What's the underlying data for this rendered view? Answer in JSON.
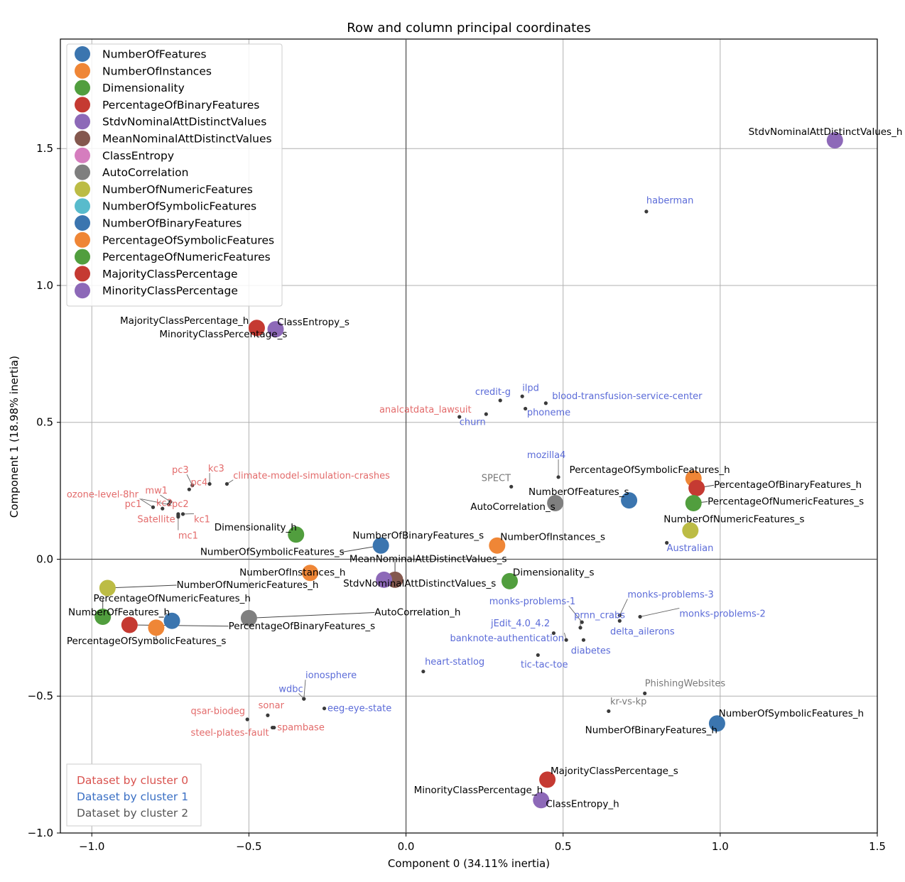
{
  "chart_data": {
    "type": "scatter",
    "title": "Row and column principal coordinates",
    "xlabel": "Component 0 (34.11% inertia)",
    "ylabel": "Component 1 (18.98% inertia)",
    "xlim": [
      -1.1,
      1.5
    ],
    "ylim": [
      -1.0,
      1.9
    ],
    "xticks": [
      -1.0,
      -0.5,
      0.0,
      0.5,
      1.0,
      1.5
    ],
    "xtick_labels": [
      "−1.0",
      "−0.5",
      "0.0",
      "0.5",
      "1.0",
      "1.5"
    ],
    "yticks": [
      -1.0,
      -0.5,
      0.0,
      0.5,
      1.0,
      1.5
    ],
    "ytick_labels": [
      "−1.0",
      "−0.5",
      "0.0",
      "0.5",
      "1.0",
      "1.5"
    ],
    "grid": true,
    "legend": {
      "position": "upper-left",
      "entries": [
        {
          "label": "NumberOfFeatures",
          "color": "#3b75af"
        },
        {
          "label": "NumberOfInstances",
          "color": "#ef8636"
        },
        {
          "label": "Dimensionality",
          "color": "#519e3e"
        },
        {
          "label": "PercentageOfBinaryFeatures",
          "color": "#c53a32"
        },
        {
          "label": "StdvNominalAttDistinctValues",
          "color": "#8d69b8"
        },
        {
          "label": "MeanNominalAttDistinctValues",
          "color": "#84584e"
        },
        {
          "label": "ClassEntropy",
          "color": "#d57dbe"
        },
        {
          "label": "AutoCorrelation",
          "color": "#7f7f7f"
        },
        {
          "label": "NumberOfNumericFeatures",
          "color": "#bcbc45"
        },
        {
          "label": "NumberOfSymbolicFeatures",
          "color": "#58bbcc"
        },
        {
          "label": "NumberOfBinaryFeatures",
          "color": "#3b75af"
        },
        {
          "label": "PercentageOfSymbolicFeatures",
          "color": "#ef8636"
        },
        {
          "label": "PercentageOfNumericFeatures",
          "color": "#519e3e"
        },
        {
          "label": "MajorityClassPercentage",
          "color": "#c53a32"
        },
        {
          "label": "MinorityClassPercentage",
          "color": "#8d69b8"
        }
      ]
    },
    "cluster_legend": {
      "position": "lower-left",
      "entries": [
        {
          "label": "Dataset by cluster 0",
          "color": "#d9534f"
        },
        {
          "label": "Dataset by cluster 1",
          "color": "#3a6fc4"
        },
        {
          "label": "Dataset by cluster 2",
          "color": "#555555"
        }
      ]
    },
    "feature_points": [
      {
        "label": "StdvNominalAttDistinctValues_h",
        "x": 1.365,
        "y": 1.53,
        "color": "#8d69b8"
      },
      {
        "label": "MajorityClassPercentage_h",
        "x": -0.475,
        "y": 0.845,
        "color": "#c53a32"
      },
      {
        "label": "ClassEntropy_s",
        "x": -0.415,
        "y": 0.84,
        "color": "#8d69b8"
      },
      {
        "label": "MinorityClassPercentage_s",
        "x": -0.415,
        "y": 0.84,
        "color": "#8d69b8",
        "hidden": true
      },
      {
        "label": "PercentageOfSymbolicFeatures_h",
        "x": 0.915,
        "y": 0.295,
        "color": "#ef8636"
      },
      {
        "label": "PercentageOfBinaryFeatures_h",
        "x": 0.925,
        "y": 0.26,
        "color": "#c53a32"
      },
      {
        "label": "PercentageOfNumericFeatures_s",
        "x": 0.915,
        "y": 0.205,
        "color": "#519e3e"
      },
      {
        "label": "NumberOfNumericFeatures_s",
        "x": 0.905,
        "y": 0.105,
        "color": "#bcbc45"
      },
      {
        "label": "NumberOfFeatures_s",
        "x": 0.71,
        "y": 0.215,
        "color": "#3b75af"
      },
      {
        "label": "AutoCorrelation_s",
        "x": 0.475,
        "y": 0.205,
        "color": "#7f7f7f"
      },
      {
        "label": "Dimensionality_h",
        "x": -0.35,
        "y": 0.09,
        "color": "#519e3e"
      },
      {
        "label": "NumberOfBinaryFeatures_s",
        "x": -0.08,
        "y": 0.05,
        "color": "#3b75af"
      },
      {
        "label": "NumberOfSymbolicFeatures_s",
        "x": -0.08,
        "y": 0.05,
        "color": "#58bbcc",
        "hidden": true
      },
      {
        "label": "NumberOfInstances_s",
        "x": 0.29,
        "y": 0.05,
        "color": "#ef8636"
      },
      {
        "label": "NumberOfInstances_h",
        "x": -0.305,
        "y": -0.05,
        "color": "#ef8636"
      },
      {
        "label": "MeanNominalAttDistinctValues_s",
        "x": -0.035,
        "y": -0.075,
        "color": "#84584e"
      },
      {
        "label": "StdvNominalAttDistinctValues_s",
        "x": -0.07,
        "y": -0.075,
        "color": "#8d69b8"
      },
      {
        "label": "Dimensionality_s",
        "x": 0.33,
        "y": -0.08,
        "color": "#519e3e"
      },
      {
        "label": "NumberOfNumericFeatures_h",
        "x": -0.95,
        "y": -0.105,
        "color": "#bcbc45"
      },
      {
        "label": "AutoCorrelation_h",
        "x": -0.5,
        "y": -0.215,
        "color": "#7f7f7f"
      },
      {
        "label": "PercentageOfNumericFeatures_h",
        "x": -0.965,
        "y": -0.21,
        "color": "#519e3e"
      },
      {
        "label": "NumberOfFeatures_h",
        "x": -0.745,
        "y": -0.225,
        "color": "#3b75af"
      },
      {
        "label": "PercentageOfBinaryFeatures_s",
        "x": -0.88,
        "y": -0.24,
        "color": "#c53a32"
      },
      {
        "label": "PercentageOfSymbolicFeatures_s",
        "x": -0.795,
        "y": -0.25,
        "color": "#ef8636"
      },
      {
        "label": "NumberOfSymbolicFeatures_h",
        "x": 0.99,
        "y": -0.6,
        "color": "#3b75af"
      },
      {
        "label": "NumberOfBinaryFeatures_h",
        "x": 0.99,
        "y": -0.6,
        "color": "#3b75af",
        "hidden": true
      },
      {
        "label": "MajorityClassPercentage_s",
        "x": 0.45,
        "y": -0.805,
        "color": "#c53a32"
      },
      {
        "label": "ClassEntropy_h",
        "x": 0.43,
        "y": -0.88,
        "color": "#8d69b8"
      },
      {
        "label": "MinorityClassPercentage_h",
        "x": 0.43,
        "y": -0.88,
        "color": "#8d69b8",
        "hidden": true
      }
    ],
    "feature_labels": [
      {
        "text": "StdvNominalAttDistinctValues_h",
        "x": 1.09,
        "y": 1.55
      },
      {
        "text": "MajorityClassPercentage_h",
        "x": -0.91,
        "y": 0.86
      },
      {
        "text": "ClassEntropy_s",
        "x": -0.41,
        "y": 0.855
      },
      {
        "text": "MinorityClassPercentage_s",
        "x": -0.785,
        "y": 0.81
      },
      {
        "text": "PercentageOfSymbolicFeatures_h",
        "x": 0.52,
        "y": 0.315
      },
      {
        "text": "PercentageOfBinaryFeatures_h",
        "x": 0.98,
        "y": 0.26
      },
      {
        "text": "NumberOfFeatures_s",
        "x": 0.39,
        "y": 0.235
      },
      {
        "text": "AutoCorrelation_s",
        "x": 0.205,
        "y": 0.18
      },
      {
        "text": "PercentageOfNumericFeatures_s",
        "x": 0.96,
        "y": 0.2
      },
      {
        "text": "NumberOfNumericFeatures_s",
        "x": 0.82,
        "y": 0.135
      },
      {
        "text": "Dimensionality_h",
        "x": -0.61,
        "y": 0.105
      },
      {
        "text": "NumberOfBinaryFeatures_s",
        "x": -0.17,
        "y": 0.075
      },
      {
        "text": "NumberOfSymbolicFeatures_s",
        "x": -0.655,
        "y": 0.015
      },
      {
        "text": "NumberOfInstances_s",
        "x": 0.3,
        "y": 0.07
      },
      {
        "text": "MeanNominalAttDistinctValues_s",
        "x": -0.18,
        "y": -0.01
      },
      {
        "text": "NumberOfInstances_h",
        "x": -0.53,
        "y": -0.06
      },
      {
        "text": "StdvNominalAttDistinctValues_s",
        "x": -0.2,
        "y": -0.1
      },
      {
        "text": "Dimensionality_s",
        "x": 0.34,
        "y": -0.06
      },
      {
        "text": "NumberOfNumericFeatures_h",
        "x": -0.73,
        "y": -0.105
      },
      {
        "text": "PercentageOfNumericFeatures_h",
        "x": -0.995,
        "y": -0.155
      },
      {
        "text": "NumberOfFeatures_h",
        "x": -1.075,
        "y": -0.205
      },
      {
        "text": "AutoCorrelation_h",
        "x": -0.1,
        "y": -0.205
      },
      {
        "text": "PercentageOfBinaryFeatures_s",
        "x": -0.565,
        "y": -0.255
      },
      {
        "text": "PercentageOfSymbolicFeatures_s",
        "x": -1.08,
        "y": -0.31
      },
      {
        "text": "NumberOfSymbolicFeatures_h",
        "x": 0.995,
        "y": -0.575
      },
      {
        "text": "NumberOfBinaryFeatures_h",
        "x": 0.57,
        "y": -0.635
      },
      {
        "text": "MajorityClassPercentage_s",
        "x": 0.46,
        "y": -0.785
      },
      {
        "text": "MinorityClassPercentage_h",
        "x": 0.025,
        "y": -0.855
      },
      {
        "text": "ClassEntropy_h",
        "x": 0.445,
        "y": -0.905
      }
    ],
    "datasets": [
      {
        "label": "haberman",
        "cluster": 1,
        "x": 0.765,
        "y": 1.27,
        "lx": 0.765,
        "ly": 1.3
      },
      {
        "label": "credit-g",
        "cluster": 1,
        "x": 0.3,
        "y": 0.58,
        "lx": 0.22,
        "ly": 0.6
      },
      {
        "label": "ilpd",
        "cluster": 1,
        "x": 0.37,
        "y": 0.595,
        "lx": 0.37,
        "ly": 0.615
      },
      {
        "label": "blood-transfusion-service-center",
        "cluster": 1,
        "x": 0.445,
        "y": 0.57,
        "lx": 0.465,
        "ly": 0.585
      },
      {
        "label": "analcatdata_lawsuit",
        "cluster": 0,
        "x": 0.17,
        "y": 0.52,
        "lx": -0.085,
        "ly": 0.535
      },
      {
        "label": "phoneme",
        "cluster": 1,
        "x": 0.38,
        "y": 0.55,
        "lx": 0.385,
        "ly": 0.525
      },
      {
        "label": "churn",
        "cluster": 1,
        "x": 0.255,
        "y": 0.53,
        "lx": 0.17,
        "ly": 0.49
      },
      {
        "label": "mozilla4",
        "cluster": 1,
        "x": 0.485,
        "y": 0.3,
        "lx": 0.385,
        "ly": 0.37
      },
      {
        "label": "SPECT",
        "cluster": 2,
        "x": 0.335,
        "y": 0.265,
        "lx": 0.24,
        "ly": 0.285
      },
      {
        "label": "Australian",
        "cluster": 1,
        "x": 0.83,
        "y": 0.06,
        "lx": 0.83,
        "ly": 0.03
      },
      {
        "label": "pc3",
        "cluster": 0,
        "x": -0.68,
        "y": 0.27,
        "lx": -0.745,
        "ly": 0.315
      },
      {
        "label": "kc3",
        "cluster": 0,
        "x": -0.625,
        "y": 0.275,
        "lx": -0.63,
        "ly": 0.32
      },
      {
        "label": "climate-model-simulation-crashes",
        "cluster": 0,
        "x": -0.57,
        "y": 0.275,
        "lx": -0.55,
        "ly": 0.295
      },
      {
        "label": "pc4",
        "cluster": 0,
        "x": -0.69,
        "y": 0.255,
        "lx": -0.685,
        "ly": 0.27
      },
      {
        "label": "mw1",
        "cluster": 0,
        "x": -0.75,
        "y": 0.21,
        "lx": -0.83,
        "ly": 0.24
      },
      {
        "label": "ozone-level-8hr",
        "cluster": 0,
        "x": -0.755,
        "y": 0.2,
        "lx": -1.08,
        "ly": 0.225
      },
      {
        "label": "pc1",
        "cluster": 0,
        "x": -0.805,
        "y": 0.19,
        "lx": -0.895,
        "ly": 0.19
      },
      {
        "label": "kc2",
        "cluster": 0,
        "x": -0.775,
        "y": 0.185,
        "lx": -0.795,
        "ly": 0.195
      },
      {
        "label": "pc2",
        "cluster": 0,
        "x": -0.725,
        "y": 0.165,
        "lx": -0.745,
        "ly": 0.19
      },
      {
        "label": "Satellite",
        "cluster": 0,
        "x": -0.725,
        "y": 0.16,
        "lx": -0.855,
        "ly": 0.135
      },
      {
        "label": "kc1",
        "cluster": 0,
        "x": -0.71,
        "y": 0.165,
        "lx": -0.675,
        "ly": 0.135
      },
      {
        "label": "mc1",
        "cluster": 0,
        "x": -0.725,
        "y": 0.155,
        "lx": -0.725,
        "ly": 0.075
      },
      {
        "label": "monks-problems-1",
        "cluster": 1,
        "x": 0.56,
        "y": -0.23,
        "lx": 0.265,
        "ly": -0.165
      },
      {
        "label": "monks-problems-3",
        "cluster": 1,
        "x": 0.68,
        "y": -0.205,
        "lx": 0.705,
        "ly": -0.14
      },
      {
        "label": "monks-problems-2",
        "cluster": 1,
        "x": 0.745,
        "y": -0.21,
        "lx": 0.87,
        "ly": -0.21
      },
      {
        "label": "prnn_crabs",
        "cluster": 1,
        "x": 0.555,
        "y": -0.25,
        "lx": 0.535,
        "ly": -0.215
      },
      {
        "label": "delta_ailerons",
        "cluster": 1,
        "x": 0.68,
        "y": -0.225,
        "lx": 0.65,
        "ly": -0.275
      },
      {
        "label": "jEdit_4.0_4.2",
        "cluster": 1,
        "x": 0.47,
        "y": -0.27,
        "lx": 0.27,
        "ly": -0.245
      },
      {
        "label": "banknote-authentication",
        "cluster": 1,
        "x": 0.51,
        "y": -0.295,
        "lx": 0.14,
        "ly": -0.3
      },
      {
        "label": "diabetes",
        "cluster": 1,
        "x": 0.565,
        "y": -0.295,
        "lx": 0.525,
        "ly": -0.345
      },
      {
        "label": "tic-tac-toe",
        "cluster": 1,
        "x": 0.42,
        "y": -0.35,
        "lx": 0.365,
        "ly": -0.395
      },
      {
        "label": "heart-statlog",
        "cluster": 1,
        "x": 0.055,
        "y": -0.41,
        "lx": 0.06,
        "ly": -0.385
      },
      {
        "label": "PhishingWebsites",
        "cluster": 2,
        "x": 0.76,
        "y": -0.49,
        "lx": 0.76,
        "ly": -0.465
      },
      {
        "label": "kr-vs-kp",
        "cluster": 2,
        "x": 0.645,
        "y": -0.555,
        "lx": 0.65,
        "ly": -0.53
      },
      {
        "label": "ionosphere",
        "cluster": 1,
        "x": -0.325,
        "y": -0.51,
        "lx": -0.32,
        "ly": -0.435
      },
      {
        "label": "wdbc",
        "cluster": 1,
        "x": -0.325,
        "y": -0.51,
        "lx": -0.405,
        "ly": -0.485
      },
      {
        "label": "eeg-eye-state",
        "cluster": 1,
        "x": -0.26,
        "y": -0.545,
        "lx": -0.25,
        "ly": -0.555
      },
      {
        "label": "qsar-biodeg",
        "cluster": 0,
        "x": -0.505,
        "y": -0.585,
        "lx": -0.685,
        "ly": -0.565
      },
      {
        "label": "sonar",
        "cluster": 0,
        "x": -0.44,
        "y": -0.57,
        "lx": -0.47,
        "ly": -0.545
      },
      {
        "label": "spambase",
        "cluster": 0,
        "x": -0.42,
        "y": -0.615,
        "lx": -0.41,
        "ly": -0.625
      },
      {
        "label": "steel-plates-fault",
        "cluster": 0,
        "x": -0.425,
        "y": -0.615,
        "lx": -0.685,
        "ly": -0.645
      }
    ]
  }
}
